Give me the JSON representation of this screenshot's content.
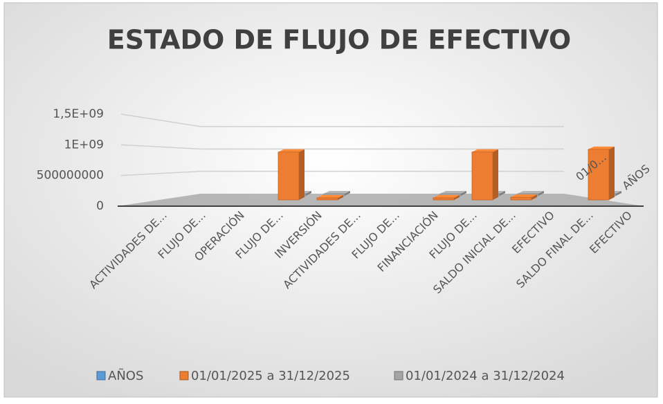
{
  "chart_data": {
    "type": "bar3d",
    "title": "ESTADO DE FLUJO DE EFECTIVO",
    "categories": [
      "ACTIVIDADES DE...",
      "FLUJO DE...",
      "OPERACIÓN",
      "FLUJO DE...",
      "INVERSIÓN",
      "ACTIVIDADES DE...",
      "FLUJO DE...",
      "FINANCIACIÓN",
      "FLUJO DE...",
      "SALDO INICIAL DE...",
      "EFECTIVO",
      "SALDO FINAL DE...",
      "EFECTIVO"
    ],
    "series": [
      {
        "name": "AÑOS",
        "color": "#5b9bd5",
        "values": [
          null,
          null,
          null,
          null,
          null,
          null,
          null,
          null,
          null,
          null,
          null,
          null,
          null
        ]
      },
      {
        "name": "01/01/2025 a 31/12/2025",
        "color": "#ed7d31",
        "values": [
          null,
          null,
          900000000,
          10000000,
          null,
          null,
          20000000,
          900000000,
          50000000,
          null,
          950000000,
          null,
          null
        ]
      },
      {
        "name": "01/01/2024 a 31/12/2024",
        "color": "#a5a5a5",
        "values": [
          null,
          null,
          20000000,
          10000000,
          null,
          null,
          10000000,
          20000000,
          10000000,
          null,
          20000000,
          null,
          null
        ]
      }
    ],
    "depth_labels": [
      "01/0...",
      "AÑOS"
    ],
    "ylim": [
      0,
      1500000000
    ],
    "yticks": [
      0,
      500000000,
      {
        "value": 1000000000,
        "label": "1E+09"
      },
      {
        "value": 1500000000,
        "label": "1,5E+09"
      }
    ],
    "grid": true,
    "legend": "bottom"
  }
}
